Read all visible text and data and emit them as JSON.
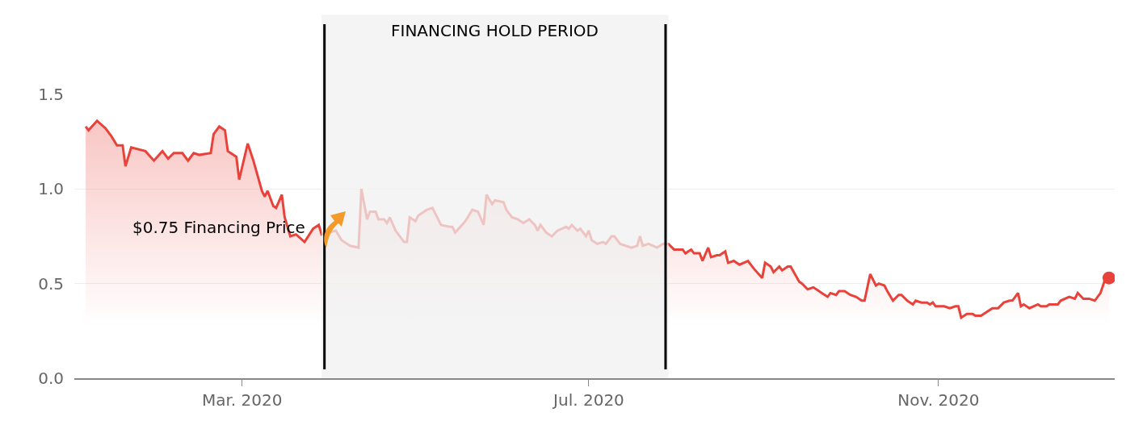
{
  "chart_data": {
    "type": "area",
    "x": [
      "2020-01-06",
      "2020-01-07",
      "2020-01-10",
      "2020-01-13",
      "2020-01-15",
      "2020-01-17",
      "2020-01-19",
      "2020-01-20",
      "2020-01-22",
      "2020-01-27",
      "2020-01-30",
      "2020-02-02",
      "2020-02-04",
      "2020-02-06",
      "2020-02-09",
      "2020-02-11",
      "2020-02-13",
      "2020-02-15",
      "2020-02-19",
      "2020-02-20",
      "2020-02-22",
      "2020-02-24",
      "2020-02-25",
      "2020-02-28",
      "2020-02-29",
      "2020-03-03",
      "2020-03-05",
      "2020-03-08",
      "2020-03-09",
      "2020-03-10",
      "2020-03-12",
      "2020-03-13",
      "2020-03-15",
      "2020-03-16",
      "2020-03-18",
      "2020-03-20",
      "2020-03-23",
      "2020-03-26",
      "2020-03-28",
      "2020-03-29",
      "2020-04-03",
      "2020-04-05",
      "2020-04-08",
      "2020-04-11",
      "2020-04-12",
      "2020-04-14",
      "2020-04-15",
      "2020-04-17",
      "2020-04-18",
      "2020-04-20",
      "2020-04-21",
      "2020-04-22",
      "2020-04-24",
      "2020-04-25",
      "2020-04-27",
      "2020-04-28",
      "2020-04-29",
      "2020-05-01",
      "2020-05-02",
      "2020-05-05",
      "2020-05-07",
      "2020-05-09",
      "2020-05-10",
      "2020-05-13",
      "2020-05-14",
      "2020-05-15",
      "2020-05-18",
      "2020-05-19",
      "2020-05-21",
      "2020-05-23",
      "2020-05-25",
      "2020-05-26",
      "2020-05-28",
      "2020-05-29",
      "2020-06-01",
      "2020-06-02",
      "2020-06-04",
      "2020-06-06",
      "2020-06-08",
      "2020-06-10",
      "2020-06-12",
      "2020-06-13",
      "2020-06-14",
      "2020-06-16",
      "2020-06-18",
      "2020-06-20",
      "2020-06-23",
      "2020-06-24",
      "2020-06-25",
      "2020-06-27",
      "2020-06-28",
      "2020-06-30",
      "2020-07-01",
      "2020-07-02",
      "2020-07-04",
      "2020-07-06",
      "2020-07-07",
      "2020-07-09",
      "2020-07-10",
      "2020-07-12",
      "2020-07-14",
      "2020-07-16",
      "2020-07-18",
      "2020-07-19",
      "2020-07-20",
      "2020-07-22",
      "2020-07-25",
      "2020-07-27",
      "2020-07-29",
      "2020-07-31",
      "2020-08-03",
      "2020-08-04",
      "2020-08-06",
      "2020-08-07",
      "2020-08-09",
      "2020-08-10",
      "2020-08-12",
      "2020-08-13",
      "2020-08-15",
      "2020-08-16",
      "2020-08-18",
      "2020-08-19",
      "2020-08-21",
      "2020-08-23",
      "2020-08-26",
      "2020-08-28",
      "2020-08-31",
      "2020-09-01",
      "2020-09-03",
      "2020-09-04",
      "2020-09-06",
      "2020-09-07",
      "2020-09-09",
      "2020-09-10",
      "2020-09-13",
      "2020-09-14",
      "2020-09-16",
      "2020-09-18",
      "2020-09-20",
      "2020-09-21",
      "2020-09-23",
      "2020-09-24",
      "2020-09-26",
      "2020-09-27",
      "2020-09-29",
      "2020-10-01",
      "2020-10-03",
      "2020-10-05",
      "2020-10-06",
      "2020-10-08",
      "2020-10-10",
      "2020-10-11",
      "2020-10-13",
      "2020-10-14",
      "2020-10-16",
      "2020-10-18",
      "2020-10-19",
      "2020-10-21",
      "2020-10-23",
      "2020-10-24",
      "2020-10-26",
      "2020-10-28",
      "2020-10-29",
      "2020-10-30",
      "2020-10-31",
      "2020-11-03",
      "2020-11-05",
      "2020-11-07",
      "2020-11-08",
      "2020-11-09",
      "2020-11-11",
      "2020-11-13",
      "2020-11-14",
      "2020-11-16",
      "2020-11-18",
      "2020-11-20",
      "2020-11-22",
      "2020-11-24",
      "2020-11-26",
      "2020-11-27",
      "2020-11-29",
      "2020-11-30",
      "2020-12-01",
      "2020-12-03",
      "2020-12-06",
      "2020-12-07",
      "2020-12-09",
      "2020-12-10",
      "2020-12-13",
      "2020-12-14",
      "2020-12-17",
      "2020-12-19",
      "2020-12-20",
      "2020-12-22",
      "2020-12-24",
      "2020-12-26",
      "2020-12-28",
      "2020-12-30",
      "2020-12-31"
    ],
    "series": [
      {
        "color": "#e8423a",
        "values": [
          1.33,
          1.31,
          1.36,
          1.32,
          1.28,
          1.23,
          1.23,
          1.12,
          1.22,
          1.2,
          1.15,
          1.2,
          1.16,
          1.19,
          1.19,
          1.15,
          1.19,
          1.18,
          1.19,
          1.29,
          1.33,
          1.31,
          1.2,
          1.17,
          1.05,
          1.24,
          1.15,
          0.99,
          0.96,
          0.99,
          0.91,
          0.9,
          0.97,
          0.85,
          0.75,
          0.76,
          0.72,
          0.79,
          0.81,
          0.76,
          0.78,
          0.73,
          0.7,
          0.69,
          1.0,
          0.84,
          0.88,
          0.88,
          0.84,
          0.84,
          0.82,
          0.85,
          0.78,
          0.76,
          0.72,
          0.72,
          0.85,
          0.83,
          0.86,
          0.89,
          0.9,
          0.84,
          0.81,
          0.8,
          0.8,
          0.77,
          0.82,
          0.84,
          0.89,
          0.88,
          0.81,
          0.97,
          0.92,
          0.94,
          0.93,
          0.89,
          0.85,
          0.84,
          0.82,
          0.84,
          0.81,
          0.78,
          0.81,
          0.77,
          0.75,
          0.78,
          0.8,
          0.79,
          0.81,
          0.78,
          0.79,
          0.75,
          0.78,
          0.73,
          0.71,
          0.72,
          0.71,
          0.75,
          0.75,
          0.71,
          0.7,
          0.69,
          0.7,
          0.75,
          0.7,
          0.71,
          0.69,
          0.71,
          0.71,
          0.68,
          0.68,
          0.66,
          0.68,
          0.66,
          0.66,
          0.62,
          0.69,
          0.64,
          0.65,
          0.65,
          0.67,
          0.61,
          0.62,
          0.6,
          0.62,
          0.58,
          0.53,
          0.61,
          0.59,
          0.56,
          0.59,
          0.57,
          0.59,
          0.59,
          0.51,
          0.5,
          0.47,
          0.48,
          0.46,
          0.45,
          0.43,
          0.45,
          0.44,
          0.46,
          0.46,
          0.44,
          0.43,
          0.41,
          0.41,
          0.55,
          0.49,
          0.5,
          0.49,
          0.46,
          0.41,
          0.44,
          0.44,
          0.41,
          0.39,
          0.41,
          0.4,
          0.4,
          0.39,
          0.4,
          0.38,
          0.38,
          0.37,
          0.38,
          0.38,
          0.32,
          0.34,
          0.34,
          0.33,
          0.33,
          0.35,
          0.37,
          0.37,
          0.4,
          0.41,
          0.41,
          0.45,
          0.38,
          0.39,
          0.37,
          0.39,
          0.38,
          0.38,
          0.39,
          0.39,
          0.41,
          0.43,
          0.42,
          0.45,
          0.42,
          0.42,
          0.41,
          0.45,
          0.54,
          0.53
        ]
      },
      {
        "type": "scatter",
        "color": "#e8423a",
        "x": [
          "2020-12-31"
        ],
        "values": [
          0.53
        ]
      }
    ],
    "xlim": [
      "2020-01-02",
      "2021-01-02"
    ],
    "xticks": [
      {
        "value": "2020-03-01",
        "label": "Mar. 2020"
      },
      {
        "value": "2020-07-01",
        "label": "Jul. 2020"
      },
      {
        "value": "2020-11-01",
        "label": "Nov. 2020"
      }
    ],
    "ylim": [
      0,
      1.5
    ],
    "yticks": [
      {
        "value": 0,
        "label": "0.0"
      },
      {
        "value": 0.5,
        "label": "0.5"
      },
      {
        "value": 1,
        "label": "1.0"
      },
      {
        "value": 1.5,
        "label": "1.5"
      }
    ],
    "grid": "y",
    "bands": [
      {
        "axis": "x",
        "from": "2020-03-29",
        "to": "2020-07-29",
        "label": "FINANCING HOLD PERIOD",
        "color": "#f0f0f0"
      }
    ],
    "ref_lines": [
      {
        "axis": "x",
        "value": "2020-03-30",
        "color": "#000000"
      },
      {
        "axis": "x",
        "value": "2020-07-28",
        "color": "#000000"
      }
    ],
    "annotations": [
      "$0.75 Financing Price"
    ]
  }
}
